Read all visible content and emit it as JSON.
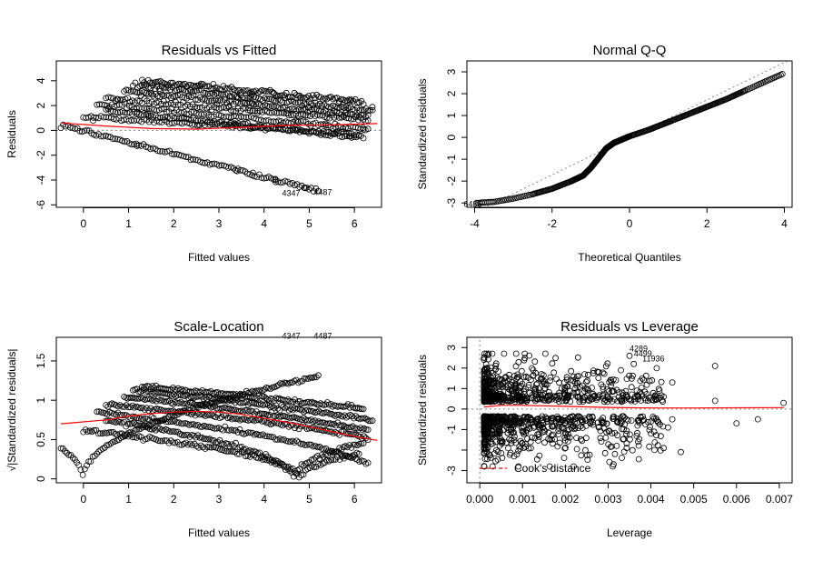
{
  "colors": {
    "points": "#000000",
    "smooth": "#ff0000",
    "reference": "#888888",
    "cooks": "#ff0000"
  },
  "chart_data": [
    {
      "type": "scatter",
      "title": "Residuals vs Fitted",
      "xlabel": "Fitted values",
      "ylabel": "Residuals",
      "xlim": [
        -0.6,
        6.6
      ],
      "ylim": [
        -6.2,
        5.6
      ],
      "xticks": [
        0,
        1,
        2,
        3,
        4,
        5,
        6
      ],
      "yticks": [
        -6,
        -4,
        -2,
        0,
        2,
        4
      ],
      "bands": [
        {
          "x": [
            -0.5,
            5.2
          ],
          "y": [
            0.45,
            -4.9
          ]
        },
        {
          "x": [
            0.0,
            6.1
          ],
          "y": [
            1.1,
            -0.3
          ]
        },
        {
          "x": [
            0.5,
            6.2
          ],
          "y": [
            1.6,
            -0.6
          ]
        },
        {
          "x": [
            0.3,
            6.3
          ],
          "y": [
            2.1,
            0.1
          ]
        },
        {
          "x": [
            0.5,
            6.3
          ],
          "y": [
            2.6,
            0.8
          ]
        },
        {
          "x": [
            0.9,
            6.3
          ],
          "y": [
            3.2,
            1.1
          ]
        },
        {
          "x": [
            1.1,
            6.4
          ],
          "y": [
            3.7,
            1.6
          ]
        },
        {
          "x": [
            1.3,
            6.2
          ],
          "y": [
            4.0,
            2.3
          ]
        }
      ],
      "smooth": {
        "x": [
          -0.5,
          0.5,
          1.5,
          2.5,
          3.5,
          4.5,
          5.5,
          6.5
        ],
        "y": [
          0.6,
          0.35,
          0.15,
          0.1,
          0.25,
          0.4,
          0.45,
          0.55
        ]
      },
      "reference_y": 0,
      "labels": [
        {
          "text": "4347",
          "x": 4.6,
          "y": -5.3
        },
        {
          "text": "4487",
          "x": 5.3,
          "y": -5.2
        }
      ]
    },
    {
      "type": "scatter",
      "title": "Normal Q-Q",
      "xlabel": "Theoretical Quantiles",
      "ylabel": "Standardized residuals",
      "xlim": [
        -4.2,
        4.2
      ],
      "ylim": [
        -3.2,
        3.5
      ],
      "xticks": [
        -4,
        -2,
        0,
        2,
        4
      ],
      "yticks": [
        -3,
        -2,
        -1,
        0,
        1,
        2,
        3
      ],
      "curve": {
        "x": [
          -3.95,
          -3.5,
          -3.0,
          -2.5,
          -2.0,
          -1.5,
          -1.2,
          -1.0,
          -0.8,
          -0.6,
          -0.4,
          -0.2,
          0.0,
          0.5,
          1.0,
          1.5,
          2.0,
          2.5,
          3.0,
          3.5,
          3.95
        ],
        "y": [
          -3.0,
          -2.95,
          -2.8,
          -2.6,
          -2.35,
          -2.0,
          -1.75,
          -1.4,
          -0.95,
          -0.5,
          -0.25,
          -0.1,
          0.05,
          0.35,
          0.7,
          1.05,
          1.4,
          1.75,
          2.15,
          2.55,
          2.9
        ]
      },
      "reference_line": {
        "x": [
          -4.2,
          4.2
        ],
        "y": [
          -3.6,
          3.6
        ]
      },
      "labels": [
        {
          "text": "6485",
          "x": -4.05,
          "y": -3.05
        }
      ]
    },
    {
      "type": "scatter",
      "title": "Scale-Location",
      "xlabel": "Fitted values",
      "ylabel": "√|Standardized residuals|",
      "xlim": [
        -0.6,
        6.6
      ],
      "ylim": [
        -0.05,
        1.8
      ],
      "xticks": [
        0,
        1,
        2,
        3,
        4,
        5,
        6
      ],
      "yticks": [
        0.0,
        0.5,
        1.0,
        1.5
      ],
      "smooth": {
        "x": [
          -0.5,
          0.5,
          1.0,
          1.5,
          2.0,
          2.5,
          3.0,
          3.5,
          4.0,
          4.5,
          5.0,
          5.5,
          6.0,
          6.5
        ],
        "y": [
          0.7,
          0.75,
          0.8,
          0.83,
          0.85,
          0.86,
          0.85,
          0.82,
          0.77,
          0.72,
          0.66,
          0.6,
          0.54,
          0.49
        ]
      },
      "labels": [
        {
          "text": "4347",
          "x": 4.6,
          "y": 1.78
        },
        {
          "text": "4487",
          "x": 5.3,
          "y": 1.78
        }
      ]
    },
    {
      "type": "scatter",
      "title": "Residuals vs Leverage",
      "xlabel": "Leverage",
      "ylabel": "Standardized residuals",
      "xlim": [
        -0.0003,
        0.0073
      ],
      "ylim": [
        -3.6,
        3.5
      ],
      "xticks": [
        0.0,
        0.001,
        0.002,
        0.003,
        0.004,
        0.005,
        0.006,
        0.007
      ],
      "xticklabels": [
        "0.000",
        "0.001",
        "0.002",
        "0.003",
        "0.004",
        "0.005",
        "0.006",
        "0.007"
      ],
      "yticks": [
        -3,
        -2,
        -1,
        0,
        1,
        2,
        3
      ],
      "yticklabels": [
        "-3",
        "",
        "-1",
        "0",
        "1",
        "2",
        "3"
      ],
      "outliers": [
        {
          "x": 0.0071,
          "y": 0.3
        },
        {
          "x": 0.0065,
          "y": -0.5
        },
        {
          "x": 0.006,
          "y": -0.7
        },
        {
          "x": 0.0055,
          "y": 2.1
        },
        {
          "x": 0.0055,
          "y": 0.4
        },
        {
          "x": 0.0047,
          "y": -2.1
        },
        {
          "x": 0.0045,
          "y": 1.3
        },
        {
          "x": 0.0045,
          "y": -0.5
        },
        {
          "x": 0.0043,
          "y": 0.6
        },
        {
          "x": 0.0044,
          "y": -0.9
        },
        {
          "x": 0.0042,
          "y": 0.9
        },
        {
          "x": 0.004,
          "y": -1.2
        },
        {
          "x": 0.0038,
          "y": 1.5
        },
        {
          "x": 0.0036,
          "y": 2.2
        },
        {
          "x": 0.0035,
          "y": 2.6
        },
        {
          "x": 0.0037,
          "y": -1.6
        },
        {
          "x": 0.0033,
          "y": 1.9
        },
        {
          "x": 0.0032,
          "y": -1.8
        }
      ],
      "smooth": {
        "x": [
          0.0001,
          0.0005,
          0.001,
          0.002,
          0.003,
          0.004,
          0.005,
          0.006,
          0.0071
        ],
        "y": [
          0.1,
          0.18,
          0.18,
          0.13,
          0.08,
          0.05,
          0.05,
          0.06,
          0.07
        ]
      },
      "labels": [
        {
          "text": "4289",
          "x": 0.0035,
          "y": 2.95
        },
        {
          "text": "4499",
          "x": 0.0036,
          "y": 2.7
        },
        {
          "text": "11936",
          "x": 0.0038,
          "y": 2.45
        }
      ],
      "legend": "Cook's distance",
      "legend_position": "bottom-left"
    }
  ]
}
